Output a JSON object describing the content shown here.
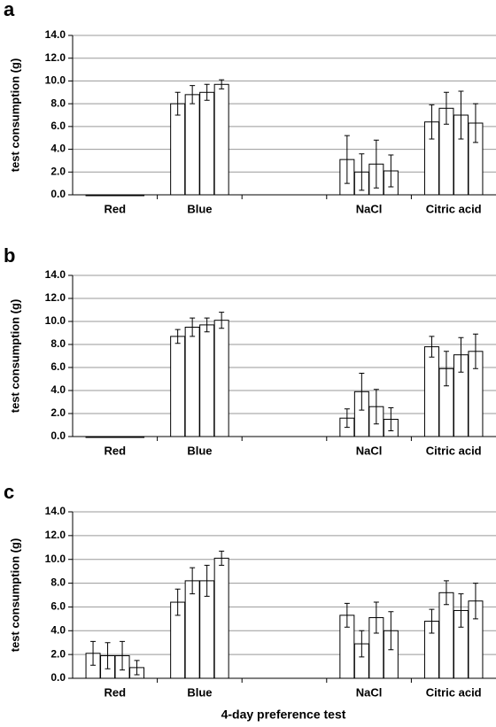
{
  "chart_data": [
    {
      "type": "bar",
      "panel_label": "a",
      "ylabel": "test consumption (g)",
      "categories": [
        "Red",
        "Blue",
        null,
        "NaCl",
        "Citric acid"
      ],
      "values": [
        [
          0,
          0,
          0,
          0
        ],
        [
          8.0,
          8.8,
          9.0,
          9.7
        ],
        [
          null,
          null,
          null,
          null
        ],
        [
          3.1,
          2.0,
          2.7,
          2.1
        ],
        [
          6.4,
          7.6,
          7.0,
          6.3
        ]
      ],
      "errors": [
        [
          0,
          0,
          0,
          0
        ],
        [
          1.0,
          0.8,
          0.7,
          0.4
        ],
        [
          null,
          null,
          null,
          null
        ],
        [
          2.1,
          1.6,
          2.1,
          1.4
        ],
        [
          1.5,
          1.4,
          2.1,
          1.7
        ]
      ],
      "ylim": [
        0,
        14
      ],
      "yticks": [
        {
          "value": 0,
          "label": "0.0"
        },
        {
          "value": 2,
          "label": "2.0"
        },
        {
          "value": 4,
          "label": "4.0"
        },
        {
          "value": 6,
          "label": "6.0"
        },
        {
          "value": 8,
          "label": "8.0"
        },
        {
          "value": 10,
          "label": "10.0"
        },
        {
          "value": 12,
          "label": "12.0"
        },
        {
          "value": 14,
          "label": "14.0"
        }
      ],
      "grid": true,
      "color": "#ffffff"
    },
    {
      "type": "bar",
      "panel_label": "b",
      "ylabel": "test consumption (g)",
      "categories": [
        "Red",
        "Blue",
        null,
        "NaCl",
        "Citric acid"
      ],
      "values": [
        [
          0,
          0,
          0,
          0
        ],
        [
          8.7,
          9.5,
          9.7,
          10.1
        ],
        [
          null,
          null,
          null,
          null
        ],
        [
          1.6,
          3.9,
          2.6,
          1.5
        ],
        [
          7.8,
          5.9,
          7.1,
          7.4
        ]
      ],
      "errors": [
        [
          0,
          0,
          0,
          0
        ],
        [
          0.6,
          0.8,
          0.6,
          0.7
        ],
        [
          null,
          null,
          null,
          null
        ],
        [
          0.8,
          1.6,
          1.5,
          1.0
        ],
        [
          0.9,
          1.5,
          1.5,
          1.5
        ]
      ],
      "ylim": [
        0,
        14
      ],
      "yticks": [
        {
          "value": 0,
          "label": "0.0"
        },
        {
          "value": 2,
          "label": "2.0"
        },
        {
          "value": 4,
          "label": "4.0"
        },
        {
          "value": 6,
          "label": "6.0"
        },
        {
          "value": 8,
          "label": "8.0"
        },
        {
          "value": 10,
          "label": "10.0"
        },
        {
          "value": 12,
          "label": "12.0"
        },
        {
          "value": 14,
          "label": "14.0"
        }
      ],
      "grid": true,
      "color": "#ffffff"
    },
    {
      "type": "bar",
      "panel_label": "c",
      "ylabel": "test consumption (g)",
      "xlabel": "4-day preference test",
      "categories": [
        "Red",
        "Blue",
        null,
        "NaCl",
        "Citric acid"
      ],
      "values": [
        [
          2.1,
          1.9,
          1.9,
          0.9
        ],
        [
          6.4,
          8.2,
          8.2,
          10.1
        ],
        [
          null,
          null,
          null,
          null
        ],
        [
          5.3,
          2.9,
          5.1,
          4.0
        ],
        [
          4.8,
          7.2,
          5.7,
          6.5
        ]
      ],
      "errors": [
        [
          1.0,
          1.1,
          1.2,
          0.6
        ],
        [
          1.1,
          1.1,
          1.3,
          0.6
        ],
        [
          null,
          null,
          null,
          null
        ],
        [
          1.0,
          1.1,
          1.3,
          1.6
        ],
        [
          1.0,
          1.0,
          1.4,
          1.5
        ]
      ],
      "ylim": [
        0,
        14
      ],
      "yticks": [
        {
          "value": 0,
          "label": "0.0"
        },
        {
          "value": 2,
          "label": "2.0"
        },
        {
          "value": 4,
          "label": "4.0"
        },
        {
          "value": 6,
          "label": "6.0"
        },
        {
          "value": 8,
          "label": "8.0"
        },
        {
          "value": 10,
          "label": "10.0"
        },
        {
          "value": 12,
          "label": "12.0"
        },
        {
          "value": 14,
          "label": "14.0"
        }
      ],
      "grid": true,
      "color": "#ffffff"
    }
  ]
}
